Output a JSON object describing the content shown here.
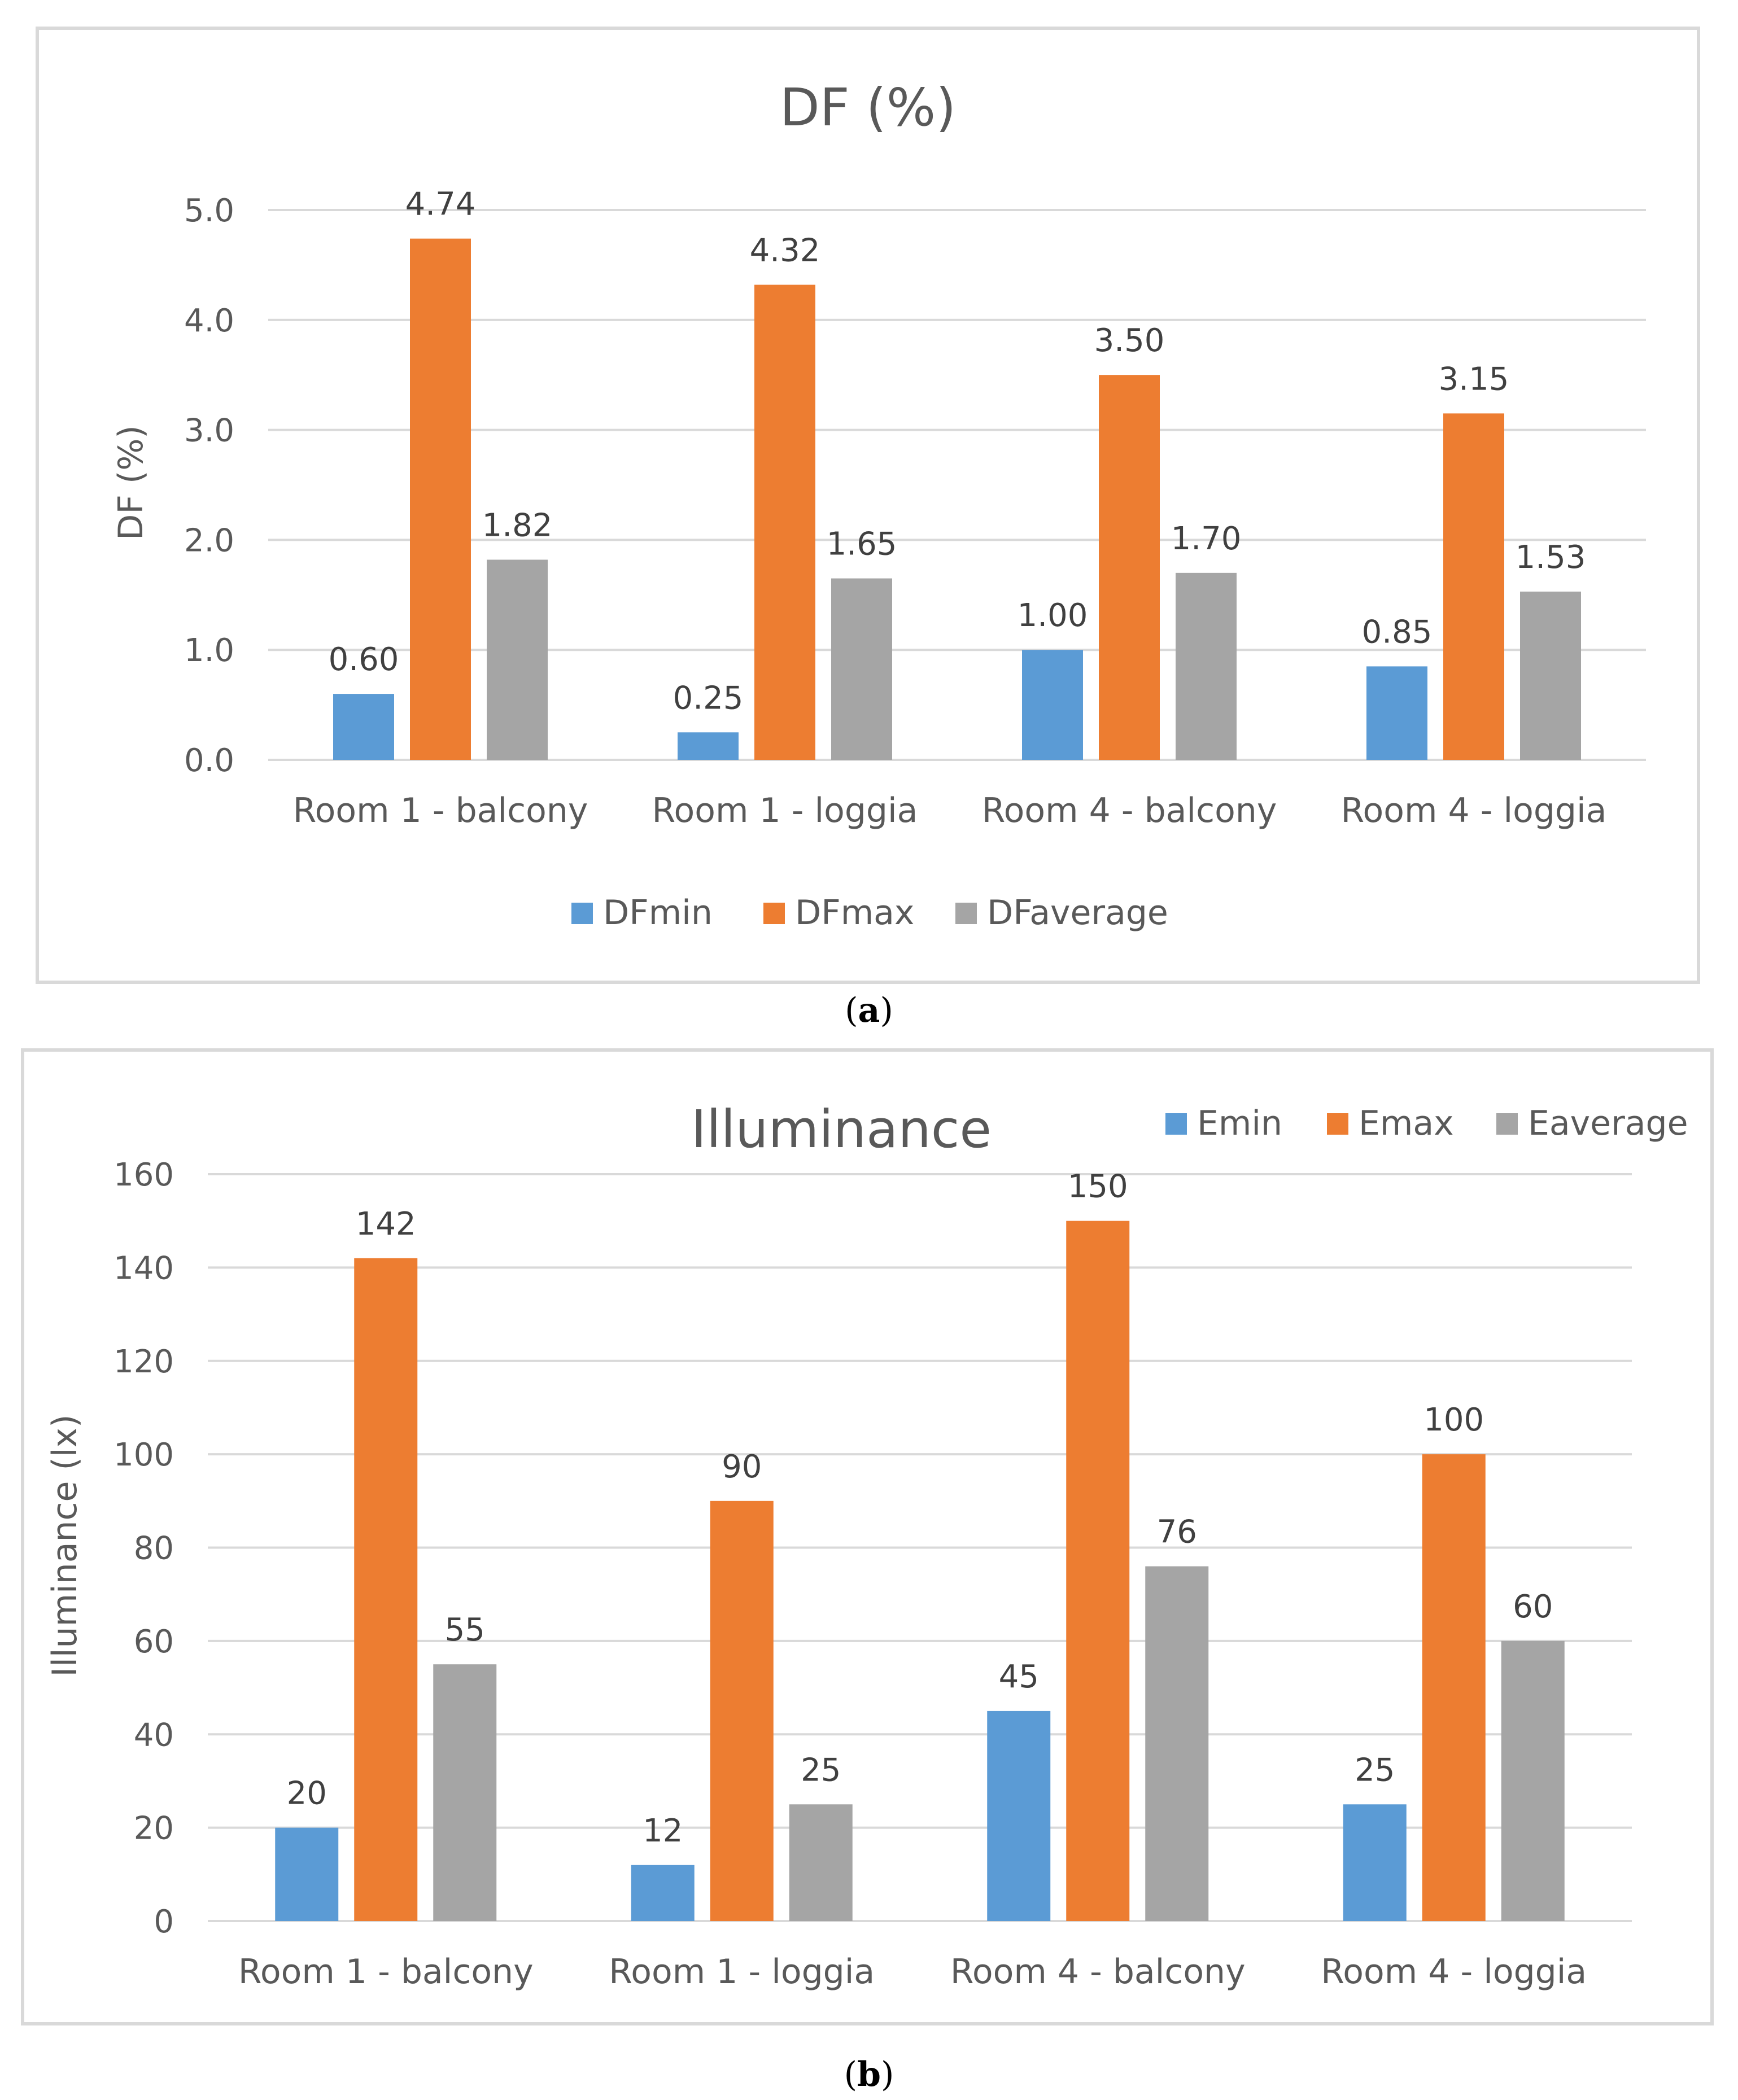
{
  "colors": {
    "min": "#5B9BD5",
    "max": "#ED7D31",
    "avg": "#A5A5A5",
    "grid": "#D9D9D9",
    "text": "#595959",
    "frame": "#D9D9D9"
  },
  "chart_data": [
    {
      "type": "bar",
      "title": "DF (%)",
      "xlabel": "",
      "ylabel": "DF (%)",
      "ylim": [
        0,
        5
      ],
      "yticks": [
        "0.0",
        "1.0",
        "2.0",
        "3.0",
        "4.0",
        "5.0"
      ],
      "categories": [
        "Room 1 - balcony",
        "Room 1 - loggia",
        "Room 4 - balcony",
        "Room 4 - loggia"
      ],
      "series": [
        {
          "name": "DFmin",
          "values": [
            0.6,
            0.25,
            1.0,
            0.85
          ],
          "labels": [
            "0.60",
            "0.25",
            "1.00",
            "0.85"
          ]
        },
        {
          "name": "DFmax",
          "values": [
            4.74,
            4.32,
            3.5,
            3.15
          ],
          "labels": [
            "4.74",
            "4.32",
            "3.50",
            "3.15"
          ]
        },
        {
          "name": "DFaverage",
          "values": [
            1.82,
            1.65,
            1.7,
            1.53
          ],
          "labels": [
            "1.82",
            "1.65",
            "1.70",
            "1.53"
          ]
        }
      ],
      "legend": "bottom",
      "caption_letter": "a"
    },
    {
      "type": "bar",
      "title": "Illuminance",
      "xlabel": "",
      "ylabel": "Illuminance (lx)",
      "ylim": [
        0,
        160
      ],
      "yticks": [
        "0",
        "20",
        "40",
        "60",
        "80",
        "100",
        "120",
        "140",
        "160"
      ],
      "categories": [
        "Room 1 - balcony",
        "Room 1 - loggia",
        "Room 4 - balcony",
        "Room 4 - loggia"
      ],
      "series": [
        {
          "name": "Emin",
          "values": [
            20,
            12,
            45,
            25
          ],
          "labels": [
            "20",
            "12",
            "45",
            "25"
          ]
        },
        {
          "name": "Emax",
          "values": [
            142,
            90,
            150,
            100
          ],
          "labels": [
            "142",
            "90",
            "150",
            "100"
          ]
        },
        {
          "name": "Eaverage",
          "values": [
            55,
            25,
            76,
            60
          ],
          "labels": [
            "55",
            "25",
            "76",
            "60"
          ]
        }
      ],
      "legend": "top-right",
      "caption_letter": "b"
    }
  ]
}
